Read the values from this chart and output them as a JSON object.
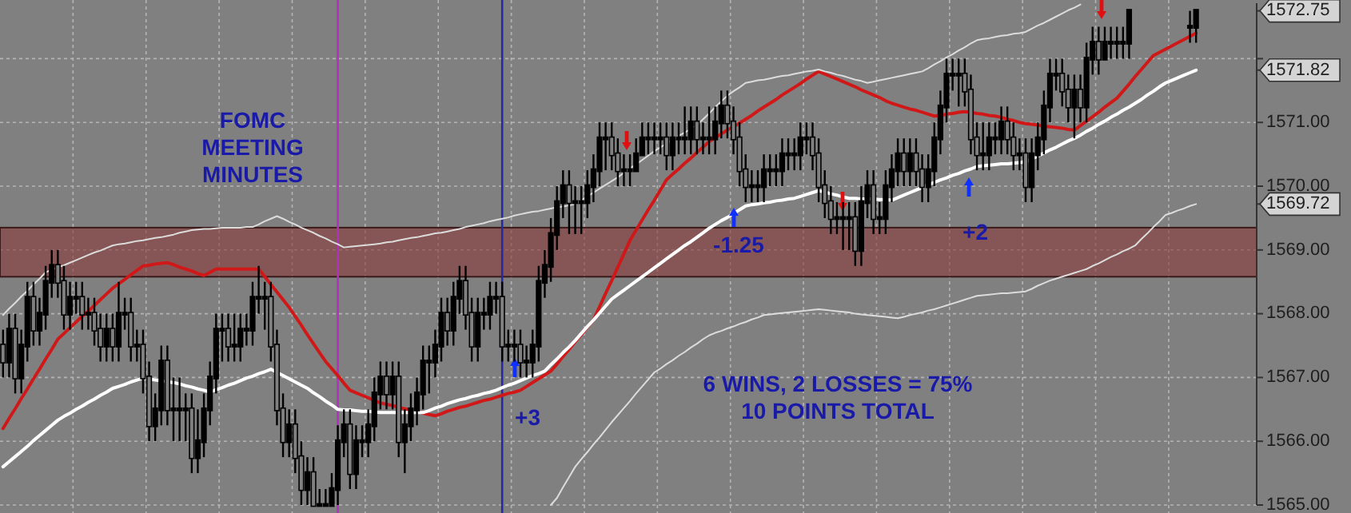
{
  "chart_data": {
    "type": "candlestick",
    "color": "#000000",
    "ylim": [
      1565,
      1572.87
    ],
    "yticks": [
      {
        "value": 1565,
        "label": "1565.00"
      },
      {
        "value": 1566,
        "label": "1566.00"
      },
      {
        "value": 1567,
        "label": "1567.00"
      },
      {
        "value": 1568,
        "label": "1568.00"
      },
      {
        "value": 1569,
        "label": "1569.00"
      },
      {
        "value": 1570,
        "label": "1570.00"
      },
      {
        "value": 1571,
        "label": "1571.00"
      },
      {
        "value": 1572,
        "label": null
      },
      {
        "value": 1572.75,
        "label": "1572.75"
      },
      {
        "value": 1571.82,
        "label": "1571.82"
      },
      {
        "value": 1569.72,
        "label": "1569.72"
      }
    ],
    "tick_labels": "y",
    "grid": true,
    "categories": [
      null,
      null,
      null,
      null,
      null,
      null,
      null,
      null,
      null,
      null,
      null,
      null,
      null,
      null,
      null,
      null,
      null,
      null,
      null,
      null,
      null,
      null,
      null,
      null,
      null,
      null,
      null,
      null,
      null,
      null,
      null,
      null,
      null,
      null,
      null,
      null,
      null,
      null,
      null,
      null,
      null,
      null,
      null,
      null,
      null,
      null,
      null,
      null,
      null,
      null,
      null,
      null,
      null,
      null,
      null,
      null,
      null,
      null,
      null,
      null,
      null,
      null,
      null,
      null,
      null,
      null,
      null,
      null,
      null,
      null,
      null,
      null,
      null,
      null,
      null,
      null,
      null,
      null,
      null,
      null,
      null,
      null,
      null,
      null,
      null,
      null,
      null,
      null,
      null,
      null,
      null,
      null,
      null,
      null,
      null,
      null,
      null,
      null,
      null,
      null,
      null,
      null,
      null,
      null,
      null,
      null,
      null,
      null,
      null,
      null,
      null,
      null,
      null,
      null,
      null,
      null,
      null,
      null,
      null,
      null,
      null,
      null,
      null,
      null,
      null,
      null,
      null,
      null,
      null,
      null,
      null,
      null,
      null,
      null,
      null,
      null,
      null,
      null,
      null,
      null,
      null,
      null,
      null,
      null,
      null,
      null,
      null,
      null,
      null,
      null,
      null,
      null,
      null,
      null,
      null,
      null,
      null,
      null,
      null,
      null,
      null,
      null,
      null,
      null,
      null,
      null,
      null,
      null,
      null,
      null,
      null,
      null,
      null,
      null,
      null,
      null,
      null,
      null,
      null,
      null,
      null,
      null,
      null,
      null,
      null,
      null,
      null,
      null,
      null,
      null,
      null,
      null,
      null,
      null,
      null,
      null,
      null
    ],
    "ohlc": [
      [
        1567.5,
        1567.75,
        1567.0,
        1567.25
      ],
      [
        1567.25,
        1568.0,
        1567.0,
        1567.75
      ],
      [
        1567.75,
        1568.0,
        1566.75,
        1567.0
      ],
      [
        1567.0,
        1567.75,
        1566.75,
        1567.5
      ],
      [
        1567.5,
        1568.5,
        1567.25,
        1568.25
      ],
      [
        1568.25,
        1568.5,
        1567.5,
        1567.75
      ],
      [
        1567.75,
        1568.25,
        1567.5,
        1568.0
      ],
      [
        1568.0,
        1568.75,
        1567.75,
        1568.5
      ],
      [
        1568.5,
        1569.0,
        1568.25,
        1568.75
      ],
      [
        1568.75,
        1569.0,
        1568.25,
        1568.5
      ],
      [
        1568.5,
        1568.75,
        1567.75,
        1568.0
      ],
      [
        1568.0,
        1568.5,
        1567.75,
        1568.25
      ],
      [
        1568.25,
        1568.5,
        1568.0,
        1568.25
      ],
      [
        1568.25,
        1568.5,
        1567.75,
        1568.0
      ],
      [
        1568.0,
        1568.25,
        1567.75,
        1568.0
      ],
      [
        1568.0,
        1568.25,
        1567.5,
        1567.75
      ],
      [
        1567.75,
        1568.0,
        1567.25,
        1567.5
      ],
      [
        1567.5,
        1568.0,
        1567.25,
        1567.75
      ],
      [
        1567.75,
        1568.0,
        1567.25,
        1567.5
      ],
      [
        1567.5,
        1568.5,
        1567.25,
        1568.0
      ],
      [
        1568.0,
        1568.25,
        1567.75,
        1568.0
      ],
      [
        1568.0,
        1568.25,
        1567.25,
        1567.5
      ],
      [
        1567.5,
        1567.75,
        1567.25,
        1567.5
      ],
      [
        1567.5,
        1567.75,
        1566.75,
        1567.0
      ],
      [
        1567.0,
        1567.25,
        1566.0,
        1566.25
      ],
      [
        1566.25,
        1566.75,
        1566.0,
        1566.5
      ],
      [
        1566.5,
        1567.5,
        1566.25,
        1567.25
      ],
      [
        1567.25,
        1567.5,
        1566.25,
        1566.5
      ],
      [
        1566.5,
        1567.0,
        1566.0,
        1566.5
      ],
      [
        1566.5,
        1567.0,
        1566.0,
        1566.5
      ],
      [
        1566.5,
        1566.75,
        1566.0,
        1566.5
      ],
      [
        1566.5,
        1566.75,
        1565.5,
        1565.75
      ],
      [
        1565.75,
        1566.5,
        1565.5,
        1566.0
      ],
      [
        1566.0,
        1566.75,
        1565.75,
        1566.5
      ],
      [
        1566.5,
        1567.25,
        1566.25,
        1567.0
      ],
      [
        1567.0,
        1568.0,
        1566.75,
        1567.75
      ],
      [
        1567.75,
        1568.0,
        1567.25,
        1567.75
      ],
      [
        1567.75,
        1568.0,
        1567.25,
        1567.5
      ],
      [
        1567.5,
        1568.0,
        1567.25,
        1567.5
      ],
      [
        1567.5,
        1568.0,
        1567.25,
        1567.75
      ],
      [
        1567.75,
        1568.0,
        1567.5,
        1567.75
      ],
      [
        1567.75,
        1568.5,
        1567.5,
        1568.25
      ],
      [
        1568.25,
        1568.75,
        1568.0,
        1568.25
      ],
      [
        1568.25,
        1568.5,
        1567.75,
        1568.25
      ],
      [
        1568.25,
        1568.5,
        1567.25,
        1567.5
      ],
      [
        1567.5,
        1567.75,
        1566.25,
        1566.5
      ],
      [
        1566.5,
        1566.75,
        1565.75,
        1566.0
      ],
      [
        1566.0,
        1566.5,
        1565.75,
        1566.25
      ],
      [
        1566.25,
        1566.5,
        1565.5,
        1565.75
      ],
      [
        1565.75,
        1566.0,
        1565.0,
        1565.25
      ],
      [
        1565.25,
        1565.75,
        1565.0,
        1565.5
      ],
      [
        1565.5,
        1565.75,
        1565.0,
        1565.0
      ],
      [
        1565.0,
        1565.25,
        1565.0,
        1565.0
      ],
      [
        1565.0,
        1565.25,
        1565.0,
        1565.0
      ],
      [
        1565.0,
        1565.5,
        1565.0,
        1565.25
      ],
      [
        1565.25,
        1566.25,
        1565.0,
        1566.0
      ],
      [
        1566.0,
        1566.5,
        1565.75,
        1566.25
      ],
      [
        1566.25,
        1566.5,
        1565.25,
        1565.5
      ],
      [
        1565.5,
        1566.25,
        1565.25,
        1566.0
      ],
      [
        1566.0,
        1566.25,
        1565.75,
        1566.0
      ],
      [
        1566.0,
        1566.5,
        1565.75,
        1566.25
      ],
      [
        1566.25,
        1567.0,
        1566.0,
        1566.75
      ],
      [
        1566.75,
        1567.25,
        1566.5,
        1567.0
      ],
      [
        1567.0,
        1567.25,
        1566.5,
        1566.75
      ],
      [
        1566.75,
        1567.25,
        1566.5,
        1567.0
      ],
      [
        1567.0,
        1567.25,
        1565.75,
        1566.0
      ],
      [
        1566.0,
        1566.5,
        1565.5,
        1566.25
      ],
      [
        1566.25,
        1566.75,
        1566.0,
        1566.5
      ],
      [
        1566.5,
        1567.0,
        1566.25,
        1566.75
      ],
      [
        1566.75,
        1567.5,
        1566.5,
        1567.25
      ],
      [
        1567.25,
        1567.5,
        1566.75,
        1567.25
      ],
      [
        1567.25,
        1567.75,
        1567.0,
        1567.5
      ],
      [
        1567.5,
        1568.25,
        1567.25,
        1568.0
      ],
      [
        1568.0,
        1568.25,
        1567.5,
        1567.75
      ],
      [
        1567.75,
        1568.5,
        1567.5,
        1568.25
      ],
      [
        1568.25,
        1568.75,
        1568.0,
        1568.5
      ],
      [
        1568.5,
        1568.75,
        1567.75,
        1568.0
      ],
      [
        1568.0,
        1568.25,
        1567.25,
        1567.5
      ],
      [
        1567.5,
        1568.25,
        1567.25,
        1568.0
      ],
      [
        1568.0,
        1568.25,
        1567.75,
        1568.0
      ],
      [
        1568.0,
        1568.5,
        1567.75,
        1568.25
      ],
      [
        1568.25,
        1568.5,
        1568.0,
        1568.25
      ],
      [
        1568.25,
        1568.5,
        1567.25,
        1567.5
      ],
      [
        1567.5,
        1567.75,
        1567.25,
        1567.5
      ],
      [
        1567.5,
        1567.75,
        1567.25,
        1567.5
      ],
      [
        1567.5,
        1567.75,
        1567.0,
        1567.25
      ],
      [
        1567.25,
        1567.5,
        1567.0,
        1567.25
      ],
      [
        1567.25,
        1567.75,
        1567.0,
        1567.5
      ],
      [
        1567.5,
        1568.75,
        1567.25,
        1568.5
      ],
      [
        1568.5,
        1569.0,
        1568.25,
        1568.75
      ],
      [
        1568.75,
        1569.5,
        1568.5,
        1569.25
      ],
      [
        1569.25,
        1570.0,
        1569.0,
        1569.75
      ],
      [
        1569.75,
        1570.25,
        1569.5,
        1570.0
      ],
      [
        1570.0,
        1570.25,
        1569.25,
        1569.75
      ],
      [
        1569.75,
        1570.0,
        1569.25,
        1569.75
      ],
      [
        1569.75,
        1570.0,
        1569.25,
        1569.75
      ],
      [
        1569.75,
        1570.25,
        1569.5,
        1570.0
      ],
      [
        1570.0,
        1570.5,
        1569.75,
        1570.25
      ],
      [
        1570.25,
        1571.0,
        1570.0,
        1570.75
      ],
      [
        1570.75,
        1571.0,
        1570.25,
        1570.75
      ],
      [
        1570.75,
        1571.0,
        1570.25,
        1570.5
      ],
      [
        1570.5,
        1570.75,
        1570.0,
        1570.25
      ],
      [
        1570.25,
        1570.5,
        1570.0,
        1570.25
      ],
      [
        1570.25,
        1570.5,
        1570.0,
        1570.25
      ],
      [
        1570.25,
        1570.75,
        1570.25,
        1570.5
      ],
      [
        1570.5,
        1571.0,
        1570.5,
        1570.75
      ],
      [
        1570.75,
        1571.0,
        1570.5,
        1570.75
      ],
      [
        1570.75,
        1571.0,
        1570.5,
        1570.75
      ],
      [
        1570.75,
        1571.0,
        1570.5,
        1570.75
      ],
      [
        1570.75,
        1571.0,
        1570.25,
        1570.5
      ],
      [
        1570.5,
        1571.0,
        1570.25,
        1570.75
      ],
      [
        1570.75,
        1571.0,
        1570.5,
        1570.75
      ],
      [
        1570.75,
        1571.25,
        1570.5,
        1570.75
      ],
      [
        1570.75,
        1571.25,
        1570.5,
        1571.0
      ],
      [
        1571.0,
        1571.25,
        1570.5,
        1570.75
      ],
      [
        1570.75,
        1571.0,
        1570.5,
        1570.75
      ],
      [
        1570.75,
        1571.25,
        1570.5,
        1570.75
      ],
      [
        1570.75,
        1571.25,
        1570.5,
        1571.0
      ],
      [
        1571.0,
        1571.5,
        1570.75,
        1571.25
      ],
      [
        1571.25,
        1571.5,
        1570.75,
        1571.0
      ],
      [
        1571.0,
        1571.25,
        1570.5,
        1570.75
      ],
      [
        1570.75,
        1571.0,
        1570.0,
        1570.25
      ],
      [
        1570.25,
        1570.5,
        1569.75,
        1570.0
      ],
      [
        1570.0,
        1570.25,
        1569.75,
        1570.0
      ],
      [
        1570.0,
        1570.25,
        1569.75,
        1570.0
      ],
      [
        1570.0,
        1570.5,
        1569.75,
        1570.25
      ],
      [
        1570.25,
        1570.5,
        1570.0,
        1570.25
      ],
      [
        1570.25,
        1570.5,
        1570.0,
        1570.25
      ],
      [
        1570.25,
        1570.75,
        1570.0,
        1570.5
      ],
      [
        1570.5,
        1570.75,
        1570.25,
        1570.5
      ],
      [
        1570.5,
        1570.75,
        1570.25,
        1570.5
      ],
      [
        1570.5,
        1571.0,
        1570.25,
        1570.75
      ],
      [
        1570.75,
        1571.0,
        1570.5,
        1570.75
      ],
      [
        1570.75,
        1571.0,
        1570.25,
        1570.5
      ],
      [
        1570.5,
        1570.75,
        1569.75,
        1570.0
      ],
      [
        1570.0,
        1570.25,
        1569.5,
        1569.75
      ],
      [
        1569.75,
        1570.0,
        1569.25,
        1569.5
      ],
      [
        1569.5,
        1569.75,
        1569.25,
        1569.5
      ],
      [
        1569.5,
        1569.75,
        1569.0,
        1569.5
      ],
      [
        1569.5,
        1569.75,
        1569.0,
        1569.5
      ],
      [
        1569.5,
        1569.75,
        1568.75,
        1569.0
      ],
      [
        1569.0,
        1570.0,
        1568.75,
        1569.75
      ],
      [
        1569.75,
        1570.25,
        1569.5,
        1570.0
      ],
      [
        1570.0,
        1570.25,
        1569.25,
        1569.5
      ],
      [
        1569.5,
        1569.75,
        1569.25,
        1569.5
      ],
      [
        1569.5,
        1570.25,
        1569.25,
        1570.0
      ],
      [
        1570.0,
        1570.5,
        1569.75,
        1570.25
      ],
      [
        1570.25,
        1570.75,
        1570.0,
        1570.5
      ],
      [
        1570.5,
        1570.75,
        1570.0,
        1570.25
      ],
      [
        1570.25,
        1570.75,
        1570.0,
        1570.5
      ],
      [
        1570.5,
        1570.75,
        1570.0,
        1570.25
      ],
      [
        1570.25,
        1570.5,
        1569.75,
        1570.0
      ],
      [
        1570.0,
        1570.5,
        1569.75,
        1570.25
      ],
      [
        1570.25,
        1571.0,
        1570.0,
        1570.75
      ],
      [
        1570.75,
        1571.5,
        1570.5,
        1571.25
      ],
      [
        1571.25,
        1572.0,
        1571.0,
        1571.75
      ],
      [
        1571.75,
        1572.0,
        1571.5,
        1571.75
      ],
      [
        1571.75,
        1572.0,
        1571.25,
        1571.75
      ],
      [
        1571.75,
        1572.0,
        1571.25,
        1571.5
      ],
      [
        1571.5,
        1571.75,
        1570.5,
        1570.75
      ],
      [
        1570.75,
        1571.0,
        1570.25,
        1570.5
      ],
      [
        1570.5,
        1571.0,
        1570.25,
        1570.5
      ],
      [
        1570.5,
        1571.0,
        1570.25,
        1570.75
      ],
      [
        1570.75,
        1571.0,
        1570.5,
        1570.75
      ],
      [
        1570.75,
        1571.25,
        1570.5,
        1571.0
      ],
      [
        1571.0,
        1571.25,
        1570.5,
        1570.75
      ],
      [
        1570.75,
        1571.0,
        1570.25,
        1570.5
      ],
      [
        1570.5,
        1570.75,
        1570.25,
        1570.5
      ],
      [
        1570.5,
        1570.75,
        1569.75,
        1570.0
      ],
      [
        1570.0,
        1570.75,
        1569.75,
        1570.5
      ],
      [
        1570.5,
        1571.0,
        1570.25,
        1570.75
      ],
      [
        1570.75,
        1571.5,
        1570.5,
        1571.25
      ],
      [
        1571.25,
        1572.0,
        1571.0,
        1571.75
      ],
      [
        1571.75,
        1572.0,
        1571.5,
        1571.75
      ],
      [
        1571.75,
        1572.0,
        1571.25,
        1571.5
      ],
      [
        1571.5,
        1571.75,
        1571.0,
        1571.25
      ],
      [
        1571.25,
        1571.75,
        1570.75,
        1571.5
      ],
      [
        1571.5,
        1571.75,
        1571.0,
        1571.25
      ],
      [
        1571.25,
        1572.25,
        1571.0,
        1572.0
      ],
      [
        1572.0,
        1572.5,
        1571.75,
        1572.25
      ],
      [
        1572.25,
        1572.5,
        1571.75,
        1572.0
      ],
      [
        1572.0,
        1572.5,
        1572.0,
        1572.25
      ],
      [
        1572.25,
        1572.5,
        1572.0,
        1572.25
      ],
      [
        1572.25,
        1572.5,
        1572.0,
        1572.25
      ],
      [
        1572.25,
        1572.5,
        1572.0,
        1572.25
      ],
      [
        1572.25,
        1572.75,
        1572.0,
        1572.75
      ],
      null,
      null,
      null,
      null,
      null,
      null,
      null,
      null,
      null,
      [
        1572.5,
        1572.75,
        1572.25,
        1572.5
      ],
      [
        1572.5,
        1572.75,
        1572.25,
        1572.75
      ]
    ],
    "series": [
      {
        "type": "line",
        "color": "#d01818",
        "values": [
          1566.2,
          1566.36,
          1566.51,
          1566.67,
          1566.82,
          1566.98,
          1567.13,
          1567.29,
          1567.44,
          1567.6,
          1567.69,
          1567.78,
          1567.87,
          1567.96,
          1568.04,
          1568.13,
          1568.22,
          1568.31,
          1568.4,
          1568.47,
          1568.54,
          1568.61,
          1568.68,
          1568.75,
          1568.76,
          1568.78,
          1568.79,
          1568.8,
          1568.77,
          1568.73,
          1568.7,
          1568.67,
          1568.63,
          1568.6,
          1568.65,
          1568.7,
          1568.7,
          1568.7,
          1568.7,
          1568.7,
          1568.7,
          1568.7,
          1568.7,
          1568.58,
          1568.46,
          1568.34,
          1568.22,
          1568.1,
          1567.96,
          1567.82,
          1567.67,
          1567.53,
          1567.39,
          1567.25,
          1567.14,
          1567.03,
          1566.91,
          1566.8,
          1566.76,
          1566.72,
          1566.68,
          1566.64,
          1566.6,
          1566.58,
          1566.56,
          1566.53,
          1566.51,
          1566.49,
          1566.47,
          1566.44,
          1566.42,
          1566.4,
          1566.43,
          1566.47,
          1566.5,
          1566.53,
          1566.55,
          1566.58,
          1566.61,
          1566.64,
          1566.66,
          1566.69,
          1566.72,
          1566.75,
          1566.77,
          1566.8,
          1566.86,
          1566.92,
          1566.98,
          1567.04,
          1567.1,
          1567.21,
          1567.33,
          1567.44,
          1567.56,
          1567.67,
          1567.79,
          1567.9,
          1568.11,
          1568.32,
          1568.52,
          1568.73,
          1568.94,
          1569.15,
          1569.31,
          1569.47,
          1569.63,
          1569.78,
          1569.94,
          1570.1,
          1570.19,
          1570.27,
          1570.36,
          1570.44,
          1570.53,
          1570.61,
          1570.7,
          1570.76,
          1570.82,
          1570.88,
          1570.93,
          1570.99,
          1571.05,
          1571.11,
          1571.18,
          1571.24,
          1571.3,
          1571.36,
          1571.43,
          1571.49,
          1571.55,
          1571.61,
          1571.68,
          1571.74,
          1571.8,
          1571.76,
          1571.72,
          1571.68,
          1571.64,
          1571.6,
          1571.56,
          1571.51,
          1571.47,
          1571.43,
          1571.39,
          1571.34,
          1571.3,
          1571.27,
          1571.24,
          1571.21,
          1571.19,
          1571.16,
          1571.13,
          1571.1,
          1571.11,
          1571.13,
          1571.14,
          1571.16,
          1571.17,
          1571.16,
          1571.14,
          1571.13,
          1571.11,
          1571.1,
          1571.08,
          1571.05,
          1571.03,
          1571.0,
          1570.98,
          1570.97,
          1570.96,
          1570.94,
          1570.93,
          1570.92,
          1570.91,
          1570.89,
          1570.88,
          1570.95,
          1571.02,
          1571.09,
          1571.16,
          1571.24,
          1571.31,
          1571.38,
          1571.49,
          1571.6,
          1571.72,
          1571.83,
          1571.94,
          1572.05,
          1572.1,
          1572.15,
          1572.2,
          1572.25,
          1572.3,
          1572.35,
          1572.4
        ]
      },
      {
        "type": "line",
        "color": "#ffffff",
        "values": [
          1565.6,
          1565.68,
          1565.76,
          1565.84,
          1565.92,
          1566.01,
          1566.09,
          1566.17,
          1566.25,
          1566.33,
          1566.39,
          1566.44,
          1566.5,
          1566.55,
          1566.61,
          1566.66,
          1566.72,
          1566.77,
          1566.83,
          1566.86,
          1566.89,
          1566.93,
          1566.96,
          1566.99,
          1566.98,
          1566.96,
          1566.95,
          1566.93,
          1566.92,
          1566.9,
          1566.87,
          1566.85,
          1566.82,
          1566.8,
          1566.77,
          1566.81,
          1566.84,
          1566.88,
          1566.91,
          1566.95,
          1566.99,
          1567.02,
          1567.06,
          1567.09,
          1567.13,
          1567.08,
          1567.03,
          1566.98,
          1566.93,
          1566.88,
          1566.83,
          1566.76,
          1566.7,
          1566.63,
          1566.57,
          1566.5,
          1566.49,
          1566.49,
          1566.48,
          1566.47,
          1566.47,
          1566.46,
          1566.45,
          1566.45,
          1566.45,
          1566.45,
          1566.45,
          1566.45,
          1566.45,
          1566.45,
          1566.48,
          1566.52,
          1566.55,
          1566.59,
          1566.62,
          1566.65,
          1566.67,
          1566.7,
          1566.72,
          1566.75,
          1566.77,
          1566.8,
          1566.84,
          1566.88,
          1566.91,
          1566.95,
          1566.99,
          1567.03,
          1567.06,
          1567.1,
          1567.2,
          1567.29,
          1567.39,
          1567.48,
          1567.58,
          1567.69,
          1567.8,
          1567.9,
          1568.01,
          1568.12,
          1568.23,
          1568.3,
          1568.37,
          1568.44,
          1568.51,
          1568.58,
          1568.65,
          1568.72,
          1568.79,
          1568.86,
          1568.93,
          1569.0,
          1569.07,
          1569.13,
          1569.2,
          1569.27,
          1569.34,
          1569.4,
          1569.46,
          1569.51,
          1569.57,
          1569.63,
          1569.69,
          1569.71,
          1569.72,
          1569.74,
          1569.75,
          1569.77,
          1569.78,
          1569.8,
          1569.81,
          1569.84,
          1569.87,
          1569.9,
          1569.93,
          1569.91,
          1569.88,
          1569.86,
          1569.83,
          1569.81,
          1569.81,
          1569.8,
          1569.8,
          1569.8,
          1569.79,
          1569.79,
          1569.78,
          1569.82,
          1569.86,
          1569.9,
          1569.94,
          1569.98,
          1570.02,
          1570.06,
          1570.1,
          1570.13,
          1570.17,
          1570.2,
          1570.24,
          1570.27,
          1570.31,
          1570.32,
          1570.33,
          1570.34,
          1570.35,
          1570.35,
          1570.36,
          1570.37,
          1570.38,
          1570.43,
          1570.47,
          1570.52,
          1570.57,
          1570.61,
          1570.66,
          1570.71,
          1570.75,
          1570.8,
          1570.86,
          1570.91,
          1570.97,
          1571.02,
          1571.08,
          1571.13,
          1571.19,
          1571.24,
          1571.3,
          1571.36,
          1571.43,
          1571.49,
          1571.56,
          1571.62,
          1571.66,
          1571.7,
          1571.74,
          1571.78,
          1571.82
        ]
      },
      {
        "type": "line",
        "color": "#dcdcdc",
        "values": [
          1567.98,
          1568.08,
          1568.17,
          1568.27,
          1568.36,
          1568.46,
          1568.55,
          1568.65,
          1568.69,
          1568.73,
          1568.76,
          1568.8,
          1568.84,
          1568.88,
          1568.92,
          1568.96,
          1568.99,
          1569.03,
          1569.07,
          1569.09,
          1569.1,
          1569.12,
          1569.14,
          1569.15,
          1569.17,
          1569.19,
          1569.2,
          1569.22,
          1569.24,
          1569.27,
          1569.29,
          1569.31,
          1569.32,
          1569.33,
          1569.33,
          1569.34,
          1569.35,
          1569.35,
          1569.35,
          1569.35,
          1569.36,
          1569.36,
          1569.4,
          1569.45,
          1569.49,
          1569.53,
          1569.49,
          1569.44,
          1569.4,
          1569.35,
          1569.31,
          1569.27,
          1569.22,
          1569.18,
          1569.13,
          1569.09,
          1569.04,
          1569.05,
          1569.06,
          1569.07,
          1569.08,
          1569.09,
          1569.1,
          1569.12,
          1569.13,
          1569.15,
          1569.17,
          1569.19,
          1569.2,
          1569.22,
          1569.24,
          1569.26,
          1569.27,
          1569.29,
          1569.31,
          1569.33,
          1569.36,
          1569.38,
          1569.4,
          1569.42,
          1569.45,
          1569.47,
          1569.49,
          1569.51,
          1569.54,
          1569.56,
          1569.58,
          1569.6,
          1569.61,
          1569.63,
          1569.65,
          1569.67,
          1569.68,
          1569.7,
          1569.72,
          1569.78,
          1569.84,
          1569.9,
          1569.96,
          1570.02,
          1570.08,
          1570.14,
          1570.21,
          1570.28,
          1570.34,
          1570.41,
          1570.48,
          1570.55,
          1570.61,
          1570.67,
          1570.73,
          1570.79,
          1570.84,
          1570.9,
          1570.96,
          1571.05,
          1571.14,
          1571.24,
          1571.33,
          1571.42,
          1571.49,
          1571.55,
          1571.62,
          1571.64,
          1571.66,
          1571.67,
          1571.69,
          1571.71,
          1571.73,
          1571.74,
          1571.76,
          1571.78,
          1571.8,
          1571.81,
          1571.83,
          1571.8,
          1571.78,
          1571.75,
          1571.73,
          1571.7,
          1571.67,
          1571.65,
          1571.62,
          1571.64,
          1571.66,
          1571.68,
          1571.7,
          1571.72,
          1571.74,
          1571.76,
          1571.78,
          1571.8,
          1571.85,
          1571.91,
          1571.96,
          1572.02,
          1572.07,
          1572.13,
          1572.18,
          1572.24,
          1572.29,
          1572.31,
          1572.32,
          1572.34,
          1572.36,
          1572.37,
          1572.39,
          1572.4,
          1572.42,
          1572.47,
          1572.52,
          1572.56,
          1572.61,
          1572.66,
          1572.71,
          1572.76,
          1572.8,
          1572.85,
          null,
          null,
          null,
          null,
          null,
          null,
          null,
          null,
          null,
          null,
          null,
          null,
          null,
          null,
          null,
          null,
          null,
          null,
          null
        ]
      },
      {
        "type": "line",
        "color": "#dcdcdc",
        "values": [
          null,
          null,
          null,
          null,
          null,
          null,
          null,
          null,
          null,
          null,
          null,
          null,
          null,
          null,
          null,
          null,
          null,
          null,
          null,
          null,
          null,
          null,
          null,
          null,
          null,
          null,
          null,
          null,
          null,
          null,
          null,
          null,
          null,
          null,
          null,
          null,
          null,
          null,
          null,
          null,
          null,
          null,
          null,
          null,
          null,
          null,
          null,
          null,
          null,
          null,
          null,
          null,
          null,
          null,
          null,
          null,
          null,
          null,
          null,
          null,
          null,
          null,
          null,
          null,
          null,
          null,
          null,
          null,
          null,
          null,
          null,
          null,
          null,
          null,
          null,
          null,
          null,
          null,
          null,
          null,
          null,
          null,
          null,
          null,
          null,
          null,
          null,
          null,
          null,
          null,
          1565.0,
          1565.11,
          1565.28,
          1565.44,
          1565.6,
          1565.72,
          1565.83,
          1565.95,
          1566.06,
          1566.18,
          1566.3,
          1566.41,
          1566.52,
          1566.63,
          1566.75,
          1566.86,
          1566.97,
          1567.08,
          1567.14,
          1567.21,
          1567.27,
          1567.34,
          1567.4,
          1567.47,
          1567.53,
          1567.6,
          1567.66,
          1567.7,
          1567.73,
          1567.77,
          1567.8,
          1567.84,
          1567.87,
          1567.91,
          1567.94,
          1567.98,
          1567.99,
          1568.0,
          1568.01,
          1568.02,
          1568.03,
          1568.04,
          1568.05,
          1568.06,
          1568.07,
          1568.06,
          1568.05,
          1568.04,
          1568.03,
          1568.02,
          1568.0,
          1567.99,
          1567.98,
          1567.97,
          1567.96,
          1567.95,
          1567.94,
          1567.93,
          1567.95,
          1567.98,
          1568.0,
          1568.02,
          1568.05,
          1568.07,
          1568.1,
          1568.13,
          1568.16,
          1568.19,
          1568.22,
          1568.25,
          1568.28,
          1568.29,
          1568.3,
          1568.31,
          1568.32,
          1568.32,
          1568.33,
          1568.34,
          1568.35,
          1568.39,
          1568.44,
          1568.48,
          1568.52,
          1568.55,
          1568.58,
          1568.61,
          1568.64,
          1568.67,
          1568.7,
          1568.75,
          1568.79,
          1568.84,
          1568.89,
          1568.93,
          1568.98,
          1569.02,
          1569.07,
          1569.17,
          1569.26,
          1569.36,
          1569.45,
          1569.55,
          1569.58,
          1569.62,
          1569.65,
          1569.69,
          1569.72
        ]
      }
    ],
    "bands": [
      {
        "axis": "y",
        "from": 1568.58,
        "to": 1569.35,
        "color": "#8b3a3a"
      }
    ],
    "annotations": [
      "FOMC\nMEETING\nMINUTES",
      "+3",
      "-1.25",
      "+2",
      "6 WINS, 2 LOSSES = 75%\n10 POINTS TOTAL"
    ]
  }
}
